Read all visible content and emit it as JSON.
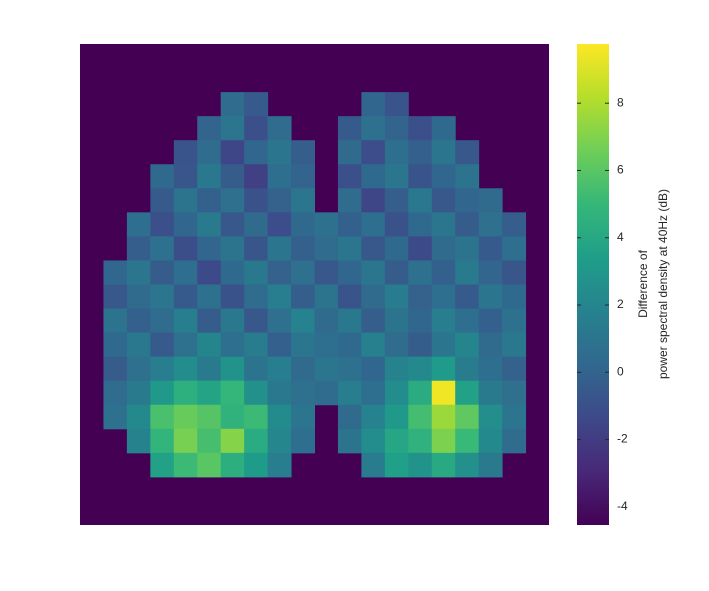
{
  "chart_data": {
    "type": "heatmap",
    "colorbar_label": [
      "Difference of",
      "power spectral density at 40Hz (dB)"
    ],
    "clim": [
      -4.54,
      9.76
    ],
    "cticks": [
      -4,
      -2,
      0,
      2,
      4,
      6,
      8
    ],
    "colormap": [
      "#440154",
      "#482878",
      "#3e4989",
      "#31688e",
      "#26828e",
      "#1f9e89",
      "#35b779",
      "#6ece58",
      "#b5de2b",
      "#fde725"
    ],
    "nan_color": "#440154",
    "values": [
      [
        null,
        null,
        null,
        null,
        null,
        null,
        null,
        null,
        null,
        null,
        null,
        null,
        null,
        null,
        null,
        null,
        null,
        null,
        null,
        null
      ],
      [
        null,
        null,
        null,
        null,
        null,
        null,
        null,
        null,
        null,
        null,
        null,
        null,
        null,
        null,
        null,
        null,
        null,
        null,
        null,
        null
      ],
      [
        null,
        null,
        null,
        null,
        null,
        null,
        0.5,
        -0.5,
        null,
        null,
        null,
        null,
        0.2,
        -0.8,
        null,
        null,
        null,
        null,
        null,
        null
      ],
      [
        null,
        null,
        null,
        null,
        null,
        0,
        1,
        -1,
        0.5,
        null,
        null,
        -0.5,
        0.8,
        0,
        -1,
        0.3,
        null,
        null,
        null,
        null
      ],
      [
        null,
        null,
        null,
        null,
        -0.8,
        0.5,
        -1.5,
        0.2,
        1,
        -0.3,
        null,
        0.4,
        -1.2,
        0.6,
        -0.2,
        1.1,
        -0.6,
        null,
        null,
        null
      ],
      [
        null,
        null,
        null,
        0.3,
        -0.7,
        1.2,
        -0.4,
        -1.8,
        0.6,
        0,
        null,
        -1,
        0.3,
        1,
        -0.8,
        0.2,
        0.9,
        null,
        null,
        null
      ],
      [
        null,
        null,
        null,
        -0.5,
        0.9,
        -0.2,
        0.7,
        -0.9,
        -0.1,
        1,
        null,
        0.5,
        -1.5,
        -0.3,
        1.2,
        -0.6,
        0.2,
        0.4,
        null,
        null
      ],
      [
        null,
        null,
        0.6,
        -1,
        0.2,
        1.3,
        -0.6,
        0.4,
        -1.2,
        0.3,
        0.8,
        -0.2,
        0.6,
        -0.9,
        0.3,
        1,
        -0.4,
        0.7,
        -0.3,
        null
      ],
      [
        null,
        null,
        -0.3,
        0.8,
        -1.1,
        0.1,
        0.9,
        -0.7,
        1.1,
        -0.2,
        0.5,
        1,
        -0.6,
        0.3,
        -1.3,
        0.4,
        0.9,
        -0.5,
        0.6,
        null
      ],
      [
        null,
        0.2,
        1,
        -0.4,
        0.6,
        -1.3,
        0.3,
        1.2,
        -0.1,
        0.7,
        -0.6,
        0.2,
        1.1,
        -0.4,
        0.8,
        -0.2,
        1.3,
        0.1,
        -0.7,
        null
      ],
      [
        null,
        -0.6,
        0.4,
        1.1,
        -0.5,
        0.8,
        -0.9,
        0.5,
        1.5,
        -0.3,
        0.9,
        -0.8,
        0.4,
        1.4,
        -0.1,
        0.6,
        -0.5,
        1,
        0.3,
        null
      ],
      [
        null,
        0.9,
        -0.2,
        0.5,
        1.6,
        -0.4,
        1.2,
        -0.6,
        0.7,
        1.8,
        0.4,
        1.2,
        -0.3,
        0.9,
        0.2,
        1.5,
        0.6,
        -0.2,
        0.8,
        null
      ],
      [
        null,
        0.3,
        1.2,
        -0.5,
        0.8,
        2,
        0.6,
        1.4,
        -0.2,
        1,
        0.6,
        0.3,
        1.7,
        0.5,
        -0.4,
        1.1,
        2,
        0.4,
        1.2,
        null
      ],
      [
        null,
        -0.4,
        0.7,
        1.5,
        2.4,
        1.3,
        2.8,
        0.9,
        1.6,
        0.4,
        1.1,
        0.8,
        0.2,
        1.9,
        2.2,
        3.2,
        1.4,
        0.6,
        -0.1,
        null
      ],
      [
        null,
        0.5,
        1.3,
        3.1,
        4.5,
        3.8,
        4.9,
        2.6,
        1.2,
        0.8,
        0.5,
        1.5,
        0.6,
        2.4,
        4.2,
        9.5,
        3.6,
        1.3,
        0.7,
        null
      ],
      [
        null,
        0.8,
        2.2,
        5.6,
        6.4,
        5.9,
        4.7,
        5.2,
        2.3,
        1,
        null,
        0.4,
        1.8,
        3.1,
        5.4,
        7.6,
        6.2,
        2.5,
        1,
        null
      ],
      [
        null,
        null,
        1.9,
        4.8,
        6.8,
        5.5,
        7.1,
        4.2,
        2.1,
        0.6,
        null,
        0.9,
        2.4,
        3.9,
        4.6,
        6.9,
        5.1,
        2.2,
        0.5,
        null
      ],
      [
        null,
        null,
        null,
        3.6,
        5.2,
        6,
        4.4,
        3.3,
        1.5,
        null,
        null,
        null,
        1.4,
        3.5,
        2.8,
        4.1,
        2.6,
        1.3,
        null,
        null
      ],
      [
        null,
        null,
        null,
        null,
        null,
        null,
        null,
        null,
        null,
        null,
        null,
        null,
        null,
        null,
        null,
        null,
        null,
        null,
        null,
        null
      ],
      [
        null,
        null,
        null,
        null,
        null,
        null,
        null,
        null,
        null,
        null,
        null,
        null,
        null,
        null,
        null,
        null,
        null,
        null,
        null,
        null
      ]
    ]
  }
}
